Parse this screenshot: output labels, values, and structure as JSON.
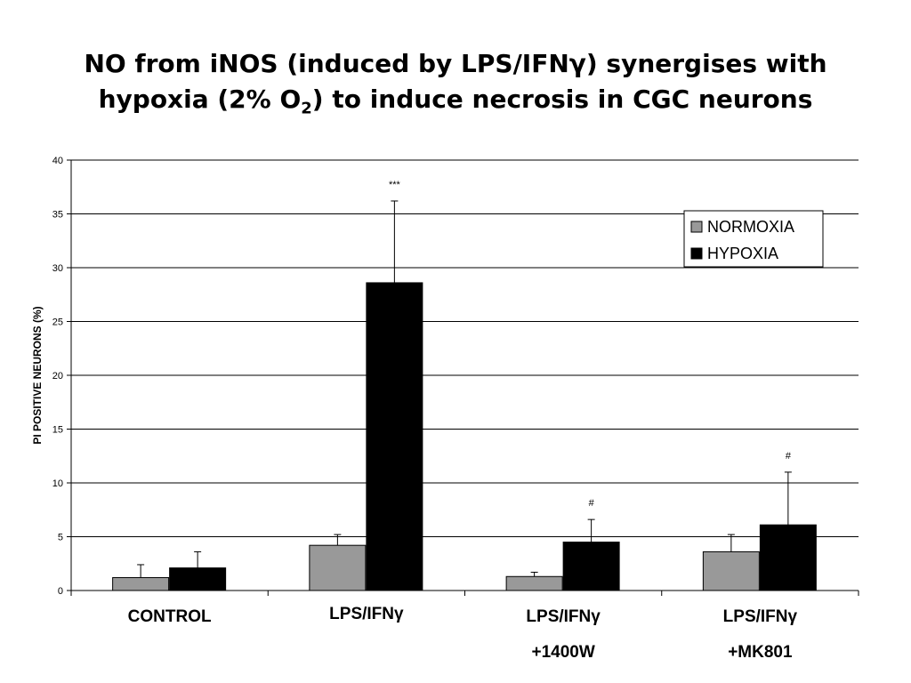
{
  "title": {
    "line1": "NO from iNOS (induced by LPS/IFNγ) synergises with",
    "line2_a": "hypoxia (2% O",
    "line2_sub": "2",
    "line2_b": ") to induce necrosis in CGC neurons"
  },
  "chart_data": {
    "type": "bar",
    "ylabel": "PI POSITIVE NEURONS (%)",
    "ylim": [
      0,
      40
    ],
    "yticks": [
      0,
      5,
      10,
      15,
      20,
      25,
      30,
      35,
      40
    ],
    "grid": true,
    "legend_position": "top-right",
    "categories": [
      {
        "line1": "CONTROL",
        "line2": ""
      },
      {
        "line1": "LPS/IFNγ",
        "line2": ""
      },
      {
        "line1": "LPS/IFNγ",
        "line2": "+1400W"
      },
      {
        "line1": "LPS/IFNγ",
        "line2": "+MK801"
      }
    ],
    "series": [
      {
        "name": "NORMOXIA",
        "color": "#999999",
        "values": [
          1.2,
          4.2,
          1.3,
          3.6
        ],
        "errors": [
          1.2,
          1.0,
          0.4,
          1.6
        ],
        "annotations": [
          "",
          "",
          "",
          ""
        ]
      },
      {
        "name": "HYPOXIA",
        "color": "#000000",
        "values": [
          2.1,
          28.6,
          4.5,
          6.1
        ],
        "errors": [
          1.5,
          7.6,
          2.1,
          4.9
        ],
        "annotations": [
          "",
          "***",
          "#",
          "#"
        ]
      }
    ]
  }
}
